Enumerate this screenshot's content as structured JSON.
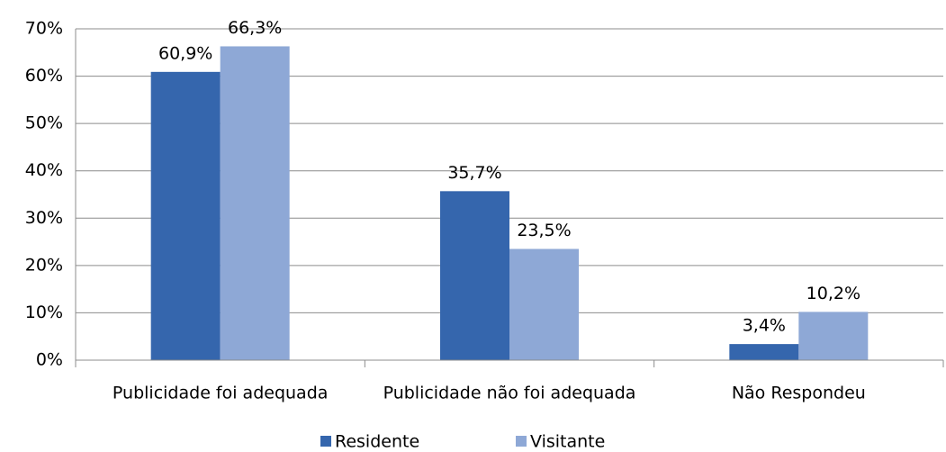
{
  "chart_data": {
    "type": "bar",
    "categories": [
      "Publicidade foi adequada",
      "Publicidade não foi adequada",
      "Não Respondeu"
    ],
    "series": [
      {
        "name": "Residente",
        "color": "#3566ad",
        "values": [
          60.9,
          35.7,
          3.4
        ],
        "value_labels": [
          "60,9%",
          "35,7%",
          "3,4%"
        ]
      },
      {
        "name": "Visitante",
        "color": "#8ea8d6",
        "values": [
          66.3,
          23.5,
          10.2
        ],
        "value_labels": [
          "66,3%",
          "23,5%",
          "10,2%"
        ]
      }
    ],
    "ylim": [
      0,
      70
    ],
    "yticks": [
      {
        "value": 0,
        "label": "0%"
      },
      {
        "value": 10,
        "label": "10%"
      },
      {
        "value": 20,
        "label": "20%"
      },
      {
        "value": 30,
        "label": "30%"
      },
      {
        "value": 40,
        "label": "40%"
      },
      {
        "value": 50,
        "label": "50%"
      },
      {
        "value": 60,
        "label": "60%"
      },
      {
        "value": 70,
        "label": "70%"
      }
    ],
    "grid": true,
    "legend": "bottom"
  }
}
